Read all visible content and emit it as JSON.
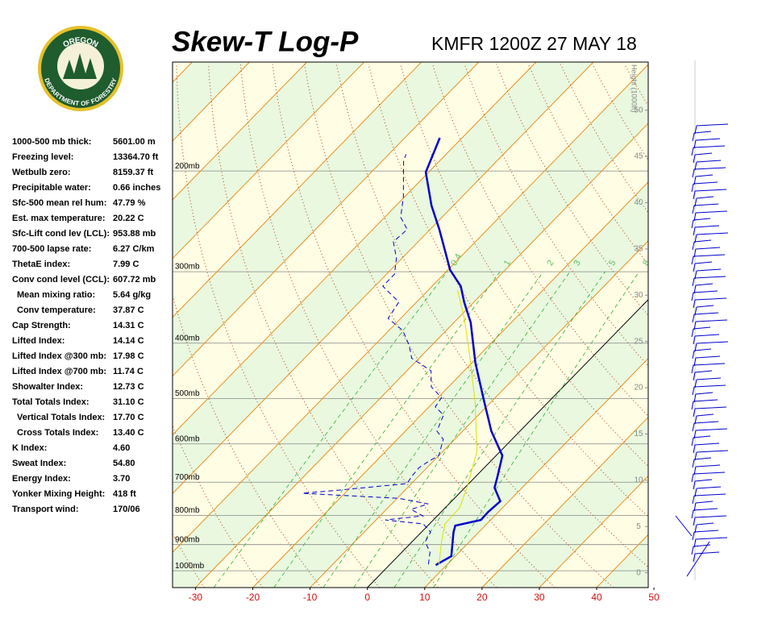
{
  "header": {
    "logo_top": "OREGON",
    "logo_bottom": "DEPARTMENT OF FORESTRY",
    "title": "Skew-T Log-P",
    "subtitle": "KMFR 1200Z 27 MAY 18"
  },
  "stats": [
    {
      "label": "1000-500 mb thick:",
      "value": "5601.00 m"
    },
    {
      "label": "Freezing level:",
      "value": "13364.70 ft"
    },
    {
      "label": "Wetbulb zero:",
      "value": "8159.37 ft"
    },
    {
      "label": "Precipitable water:",
      "value": "0.66 inches"
    },
    {
      "label": "Sfc-500 mean rel hum:",
      "value": "47.79 %"
    },
    {
      "label": "Est. max temperature:",
      "value": "20.22 C"
    },
    {
      "label": "Sfc-Lift cond lev (LCL):",
      "value": "953.88 mb"
    },
    {
      "label": "700-500 lapse rate:",
      "value": "6.27 C/km"
    },
    {
      "label": "ThetaE index:",
      "value": "7.99 C"
    },
    {
      "label": "Conv cond level (CCL):",
      "value": "607.72 mb"
    },
    {
      "label": "Mean mixing ratio:",
      "value": "5.64 g/kg",
      "indent": true
    },
    {
      "label": "Conv temperature:",
      "value": "37.87 C",
      "indent": true
    },
    {
      "label": "Cap Strength:",
      "value": "14.31 C"
    },
    {
      "label": "Lifted Index:",
      "value": "14.14 C"
    },
    {
      "label": "Lifted Index @300 mb:",
      "value": "17.98 C"
    },
    {
      "label": "Lifted Index @700 mb:",
      "value": "11.74 C"
    },
    {
      "label": "Showalter Index:",
      "value": "12.73 C"
    },
    {
      "label": "Total Totals Index:",
      "value": "31.10 C"
    },
    {
      "label": "Vertical Totals Index:",
      "value": "17.70 C",
      "indent": true
    },
    {
      "label": "Cross Totals Index:",
      "value": "13.40 C",
      "indent": true
    },
    {
      "label": "K Index:",
      "value": "4.60"
    },
    {
      "label": "Sweat Index:",
      "value": "54.80"
    },
    {
      "label": "Energy Index:",
      "value": "3.70"
    },
    {
      "label": "Yonker Mixing Height:",
      "value": "418 ft"
    },
    {
      "label": "Transport wind:",
      "value": "170/06"
    }
  ],
  "chart_data": {
    "type": "skewt",
    "xlim": [
      -34,
      49
    ],
    "xticks": [
      -30,
      -20,
      -10,
      0,
      10,
      20,
      30,
      40,
      50
    ],
    "ylim": [
      1070,
      129
    ],
    "log_y": true,
    "yticks": [
      {
        "value": 1000,
        "label": "1000mb"
      },
      {
        "value": 900,
        "label": "900mb"
      },
      {
        "value": 800,
        "label": "800mb"
      },
      {
        "value": 700,
        "label": "700mb"
      },
      {
        "value": 600,
        "label": "600mb"
      },
      {
        "value": 500,
        "label": "500mb"
      },
      {
        "value": 400,
        "label": "400mb"
      },
      {
        "value": 300,
        "label": "300mb"
      },
      {
        "value": 200,
        "label": "200mb"
      }
    ],
    "y2label": "Height (1000ft)",
    "y2lim": [
      -1.6,
      55.2
    ],
    "y2ticks": [
      0,
      5,
      10,
      15,
      20,
      25,
      30,
      35,
      40,
      45,
      50
    ],
    "mixing_ratios": [
      0.4,
      1,
      2,
      3,
      5,
      8
    ],
    "series": [
      {
        "color": "#0000cc",
        "style": "solid",
        "width": 2.5,
        "pressure": [
          977.5,
          943,
          856,
          834,
          815,
          789,
          756,
          716,
          682,
          629,
          570,
          501,
          433,
          368,
          339,
          318,
          298,
          253,
          230,
          201,
          175
        ],
        "values": [
          8.1,
          9.3,
          5.6,
          4.8,
          8.3,
          8.2,
          8.5,
          5.2,
          3.7,
          1.1,
          -5.0,
          -11.8,
          -19.4,
          -27.1,
          -31.7,
          -35.0,
          -39.6,
          -48.4,
          -53.8,
          -60.5,
          -63.9
        ]
      },
      {
        "color": "#0000cc",
        "style": "dashed",
        "width": 1,
        "pressure": [
          974.4,
          928,
          890,
          856,
          828,
          815,
          802,
          781,
          764,
          747,
          732,
          723,
          704,
          682,
          660,
          644,
          629,
          589,
          570,
          534,
          517,
          498,
          477,
          447,
          425,
          403,
          380,
          362,
          339,
          318,
          303,
          284,
          266,
          253,
          241,
          222,
          192,
          187
        ],
        "values": [
          6.7,
          4.9,
          2.3,
          1.6,
          -1.1,
          -8.4,
          -2.5,
          -5.7,
          -3.6,
          -9.7,
          -27.4,
          -21.7,
          -10.8,
          -11.2,
          -11.4,
          -10.8,
          -10.0,
          -12.0,
          -14.5,
          -16.1,
          -18.9,
          -19.4,
          -23.0,
          -25.8,
          -31.3,
          -34.0,
          -37.6,
          -42.2,
          -43.1,
          -48.6,
          -48.6,
          -51.0,
          -54.3,
          -54.0,
          -57.2,
          -60.2,
          -66.3,
          -67.0
        ]
      },
      {
        "color": "#e0e000",
        "style": "solid",
        "width": 1,
        "pressure": [
          974,
          884,
          828,
          776,
          716,
          618,
          509,
          419,
          362,
          323
        ],
        "values": [
          8.5,
          4.9,
          2.7,
          2.5,
          0.4,
          -4.1,
          -12.6,
          -21.8,
          -28.9,
          -34.9
        ]
      }
    ]
  }
}
